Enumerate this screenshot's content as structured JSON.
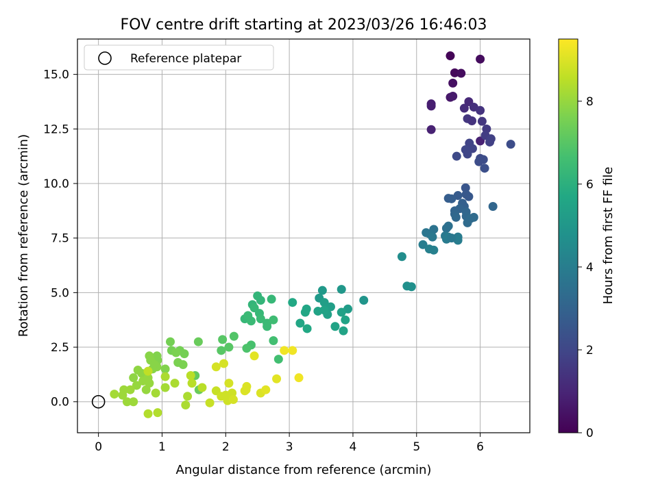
{
  "chart_data": {
    "type": "scatter",
    "title": "FOV centre drift starting at 2023/03/26 16:46:03",
    "xlabel": "Angular distance from reference (arcmin)",
    "ylabel": "Rotation from reference (arcmin)",
    "xlim": [
      -0.33,
      6.78
    ],
    "ylim": [
      -1.42,
      16.62
    ],
    "xticks": [
      0,
      1,
      2,
      3,
      4,
      5,
      6
    ],
    "yticks": [
      0.0,
      2.5,
      5.0,
      7.5,
      10.0,
      12.5,
      15.0
    ],
    "xtick_labels": [
      "0",
      "1",
      "2",
      "3",
      "4",
      "5",
      "6"
    ],
    "ytick_labels": [
      "0.0",
      "2.5",
      "5.0",
      "7.5",
      "10.0",
      "12.5",
      "15.0"
    ],
    "grid": true,
    "legend": {
      "position": "top-left",
      "entries": [
        {
          "label": "Reference platepar",
          "marker": "open-circle"
        }
      ]
    },
    "reference_point": {
      "x": 0,
      "y": 0
    },
    "colorbar": {
      "label": "Hours from first FF file",
      "colormap": "viridis",
      "range": [
        0,
        9.5
      ],
      "ticks": [
        0,
        2,
        4,
        6,
        8
      ],
      "tick_labels": [
        "0",
        "2",
        "4",
        "6",
        "8"
      ]
    },
    "points": [
      [
        5.53,
        15.85,
        0.1
      ],
      [
        6.0,
        15.7,
        0.3
      ],
      [
        5.6,
        15.07,
        0.2
      ],
      [
        5.7,
        15.05,
        0.3
      ],
      [
        5.57,
        14.6,
        0.4
      ],
      [
        5.53,
        13.95,
        0.6
      ],
      [
        5.57,
        14.0,
        0.7
      ],
      [
        5.23,
        13.65,
        0.8
      ],
      [
        5.23,
        13.55,
        0.8
      ],
      [
        5.23,
        12.47,
        0.9
      ],
      [
        6.0,
        11.95,
        0.9
      ],
      [
        5.75,
        13.45,
        1.2
      ],
      [
        5.82,
        13.75,
        1.1
      ],
      [
        5.9,
        13.5,
        1.3
      ],
      [
        6.0,
        13.35,
        1.4
      ],
      [
        5.8,
        12.97,
        1.5
      ],
      [
        5.87,
        12.87,
        1.4
      ],
      [
        6.03,
        12.85,
        1.5
      ],
      [
        6.1,
        12.5,
        1.6
      ],
      [
        6.08,
        12.2,
        1.7
      ],
      [
        6.17,
        12.05,
        1.8
      ],
      [
        6.15,
        11.9,
        1.8
      ],
      [
        5.83,
        11.85,
        1.9
      ],
      [
        5.88,
        11.6,
        1.9
      ],
      [
        5.77,
        11.55,
        2.0
      ],
      [
        5.8,
        11.35,
        2.0
      ],
      [
        5.63,
        11.25,
        2.1
      ],
      [
        6.0,
        11.15,
        2.1
      ],
      [
        6.05,
        11.1,
        2.2
      ],
      [
        5.98,
        11.0,
        2.2
      ],
      [
        6.07,
        10.7,
        2.3
      ],
      [
        6.48,
        11.8,
        2.2
      ],
      [
        5.77,
        9.8,
        2.5
      ],
      [
        5.78,
        9.5,
        2.6
      ],
      [
        5.82,
        9.4,
        2.6
      ],
      [
        5.65,
        9.45,
        2.7
      ],
      [
        5.5,
        9.32,
        2.8
      ],
      [
        5.55,
        9.3,
        2.8
      ],
      [
        5.72,
        9.1,
        2.9
      ],
      [
        5.75,
        8.95,
        2.9
      ],
      [
        5.68,
        8.85,
        3.0
      ],
      [
        5.6,
        8.75,
        3.0
      ],
      [
        5.78,
        8.7,
        3.1
      ],
      [
        5.6,
        8.6,
        3.1
      ],
      [
        5.62,
        8.45,
        3.2
      ],
      [
        5.78,
        8.5,
        3.2
      ],
      [
        5.85,
        8.4,
        3.3
      ],
      [
        5.8,
        8.2,
        3.3
      ],
      [
        5.9,
        8.45,
        3.3
      ],
      [
        6.2,
        8.95,
        3.1
      ],
      [
        5.5,
        8.05,
        3.5
      ],
      [
        5.47,
        7.95,
        3.5
      ],
      [
        5.27,
        7.9,
        3.6
      ],
      [
        5.15,
        7.75,
        3.7
      ],
      [
        5.2,
        7.7,
        3.7
      ],
      [
        5.25,
        7.55,
        3.8
      ],
      [
        5.45,
        7.6,
        3.8
      ],
      [
        5.5,
        7.55,
        3.9
      ],
      [
        5.47,
        7.45,
        3.9
      ],
      [
        5.65,
        7.55,
        3.9
      ],
      [
        5.65,
        7.4,
        4.0
      ],
      [
        5.55,
        7.5,
        3.8
      ],
      [
        5.1,
        7.2,
        4.0
      ],
      [
        5.2,
        7.0,
        4.1
      ],
      [
        5.27,
        6.95,
        4.1
      ],
      [
        4.77,
        6.65,
        4.6
      ],
      [
        4.85,
        5.3,
        4.7
      ],
      [
        4.92,
        5.27,
        4.7
      ],
      [
        4.17,
        4.65,
        4.9
      ],
      [
        3.82,
        5.15,
        5.0
      ],
      [
        3.52,
        5.1,
        5.1
      ],
      [
        3.47,
        4.75,
        5.1
      ],
      [
        3.92,
        4.25,
        5.2
      ],
      [
        3.55,
        4.55,
        5.3
      ],
      [
        3.65,
        4.35,
        5.3
      ],
      [
        3.82,
        4.1,
        5.4
      ],
      [
        3.6,
        4.0,
        5.4
      ],
      [
        3.45,
        4.15,
        5.5
      ],
      [
        3.55,
        4.2,
        5.5
      ],
      [
        3.88,
        3.75,
        5.5
      ],
      [
        3.72,
        3.45,
        5.5
      ],
      [
        3.85,
        3.25,
        5.5
      ],
      [
        3.27,
        4.25,
        5.6
      ],
      [
        3.25,
        4.1,
        5.6
      ],
      [
        3.17,
        3.6,
        5.6
      ],
      [
        3.05,
        4.55,
        5.7
      ],
      [
        3.28,
        3.35,
        5.7
      ],
      [
        2.5,
        4.85,
        6.2
      ],
      [
        2.55,
        4.65,
        6.2
      ],
      [
        2.72,
        4.7,
        6.3
      ],
      [
        2.42,
        4.45,
        6.2
      ],
      [
        2.45,
        4.3,
        6.3
      ],
      [
        2.53,
        4.05,
        6.3
      ],
      [
        2.3,
        3.8,
        6.3
      ],
      [
        2.35,
        3.95,
        6.4
      ],
      [
        2.4,
        3.7,
        6.4
      ],
      [
        2.55,
        3.8,
        6.4
      ],
      [
        2.65,
        3.6,
        6.4
      ],
      [
        2.75,
        3.75,
        6.5
      ],
      [
        2.65,
        3.45,
        6.4
      ],
      [
        2.75,
        2.8,
        6.6
      ],
      [
        2.83,
        1.95,
        6.6
      ],
      [
        2.4,
        2.6,
        6.7
      ],
      [
        2.33,
        2.45,
        6.8
      ],
      [
        2.13,
        3.0,
        6.9
      ],
      [
        2.05,
        2.5,
        7.0
      ],
      [
        1.93,
        2.35,
        7.0
      ],
      [
        1.95,
        2.85,
        7.0
      ],
      [
        1.57,
        2.75,
        7.3
      ],
      [
        1.52,
        1.2,
        7.2
      ],
      [
        1.58,
        0.55,
        7.3
      ],
      [
        1.13,
        2.75,
        7.5
      ],
      [
        1.15,
        2.35,
        7.5
      ],
      [
        1.28,
        2.35,
        7.5
      ],
      [
        1.35,
        2.2,
        7.5
      ],
      [
        1.22,
        2.25,
        7.6
      ],
      [
        1.33,
        1.7,
        7.6
      ],
      [
        1.25,
        1.8,
        7.6
      ],
      [
        1.05,
        1.5,
        7.7
      ],
      [
        0.92,
        2.1,
        7.7
      ],
      [
        0.93,
        1.9,
        7.7
      ],
      [
        0.8,
        2.1,
        7.8
      ],
      [
        0.82,
        1.9,
        7.8
      ],
      [
        0.88,
        1.7,
        7.8
      ],
      [
        0.92,
        1.6,
        7.8
      ],
      [
        0.85,
        1.5,
        7.8
      ],
      [
        0.62,
        1.45,
        7.9
      ],
      [
        0.68,
        1.3,
        7.9
      ],
      [
        0.55,
        1.1,
        7.9
      ],
      [
        0.7,
        0.95,
        8.0
      ],
      [
        0.78,
        1.1,
        8.0
      ],
      [
        0.8,
        0.85,
        8.0
      ],
      [
        0.6,
        0.75,
        8.0
      ],
      [
        0.75,
        0.55,
        8.0
      ],
      [
        0.4,
        0.55,
        8.1
      ],
      [
        0.5,
        0.55,
        8.1
      ],
      [
        0.38,
        0.3,
        8.1
      ],
      [
        0.45,
        0.0,
        8.1
      ],
      [
        0.55,
        0.0,
        8.1
      ],
      [
        0.25,
        0.35,
        8.2
      ],
      [
        0.9,
        0.4,
        8.2
      ],
      [
        1.05,
        0.65,
        8.2
      ],
      [
        1.2,
        0.85,
        8.3
      ],
      [
        1.05,
        1.15,
        8.3
      ],
      [
        1.4,
        0.25,
        8.3
      ],
      [
        1.37,
        -0.15,
        8.3
      ],
      [
        0.78,
        -0.55,
        8.4
      ],
      [
        0.93,
        -0.5,
        8.4
      ],
      [
        1.63,
        0.65,
        8.5
      ],
      [
        1.45,
        1.2,
        8.5
      ],
      [
        1.47,
        0.85,
        8.5
      ],
      [
        1.75,
        -0.05,
        8.7
      ],
      [
        1.85,
        0.5,
        8.7
      ],
      [
        1.93,
        0.25,
        8.8
      ],
      [
        2.0,
        0.3,
        8.8
      ],
      [
        2.03,
        0.05,
        8.8
      ],
      [
        2.1,
        0.4,
        8.8
      ],
      [
        2.12,
        0.1,
        8.9
      ],
      [
        2.05,
        0.85,
        8.9
      ],
      [
        1.85,
        1.6,
        8.9
      ],
      [
        1.97,
        1.75,
        8.9
      ],
      [
        2.32,
        0.55,
        9.0
      ],
      [
        2.33,
        0.7,
        9.0
      ],
      [
        2.55,
        0.4,
        9.0
      ],
      [
        2.63,
        0.55,
        9.1
      ],
      [
        2.3,
        0.5,
        9.0
      ],
      [
        2.45,
        2.1,
        9.1
      ],
      [
        2.8,
        1.05,
        9.1
      ],
      [
        2.92,
        2.35,
        9.3
      ],
      [
        3.05,
        2.35,
        9.3
      ],
      [
        3.15,
        1.1,
        9.3
      ],
      [
        0.78,
        1.4,
        8.6
      ]
    ]
  }
}
